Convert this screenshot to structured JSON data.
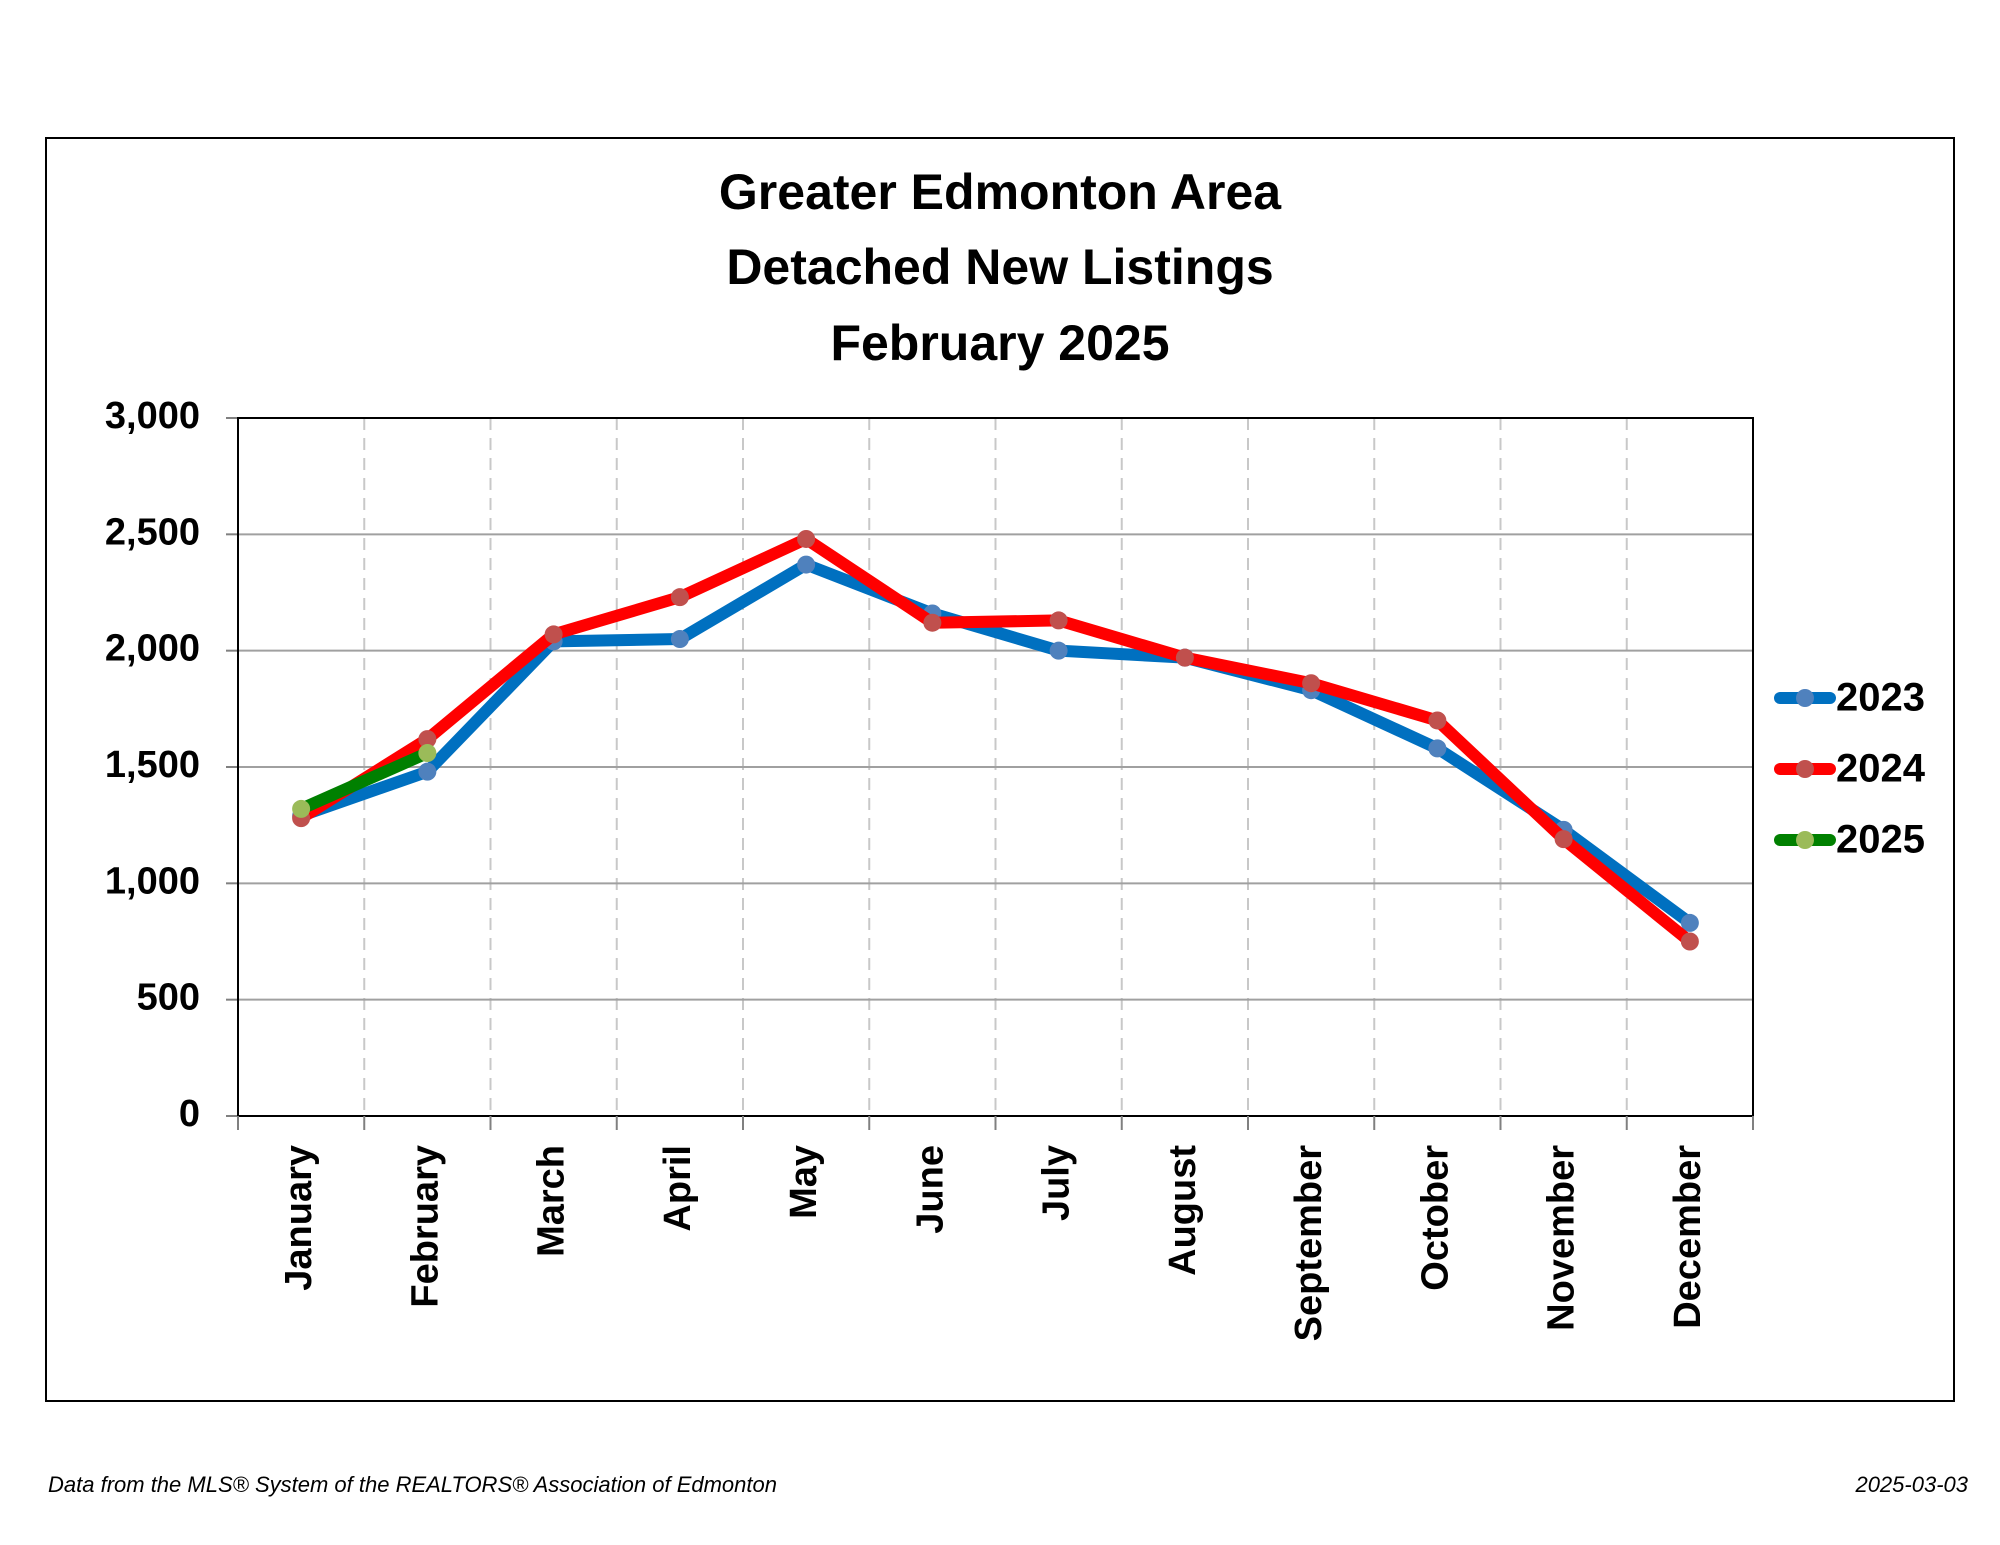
{
  "chart_data": {
    "type": "line",
    "title": [
      "Greater Edmonton Area",
      "Detached New Listings",
      "February 2025"
    ],
    "categories": [
      "January",
      "February",
      "March",
      "April",
      "May",
      "June",
      "July",
      "August",
      "September",
      "October",
      "November",
      "December"
    ],
    "series": [
      {
        "name": "2023",
        "color": "#0070c0",
        "marker_color": "#4f81bd",
        "values": [
          1290,
          1480,
          2040,
          2050,
          2370,
          2160,
          2000,
          1970,
          1830,
          1580,
          1230,
          830
        ]
      },
      {
        "name": "2024",
        "color": "#ff0000",
        "marker_color": "#c0504d",
        "values": [
          1280,
          1620,
          2070,
          2230,
          2480,
          2120,
          2130,
          1970,
          1860,
          1700,
          1190,
          750
        ]
      },
      {
        "name": "2025",
        "color": "#008000",
        "marker_color": "#9bbb59",
        "values": [
          1320,
          1560,
          null,
          null,
          null,
          null,
          null,
          null,
          null,
          null,
          null,
          null
        ]
      }
    ],
    "ylim": [
      0,
      3000
    ],
    "yticks": [
      0,
      500,
      {
        "value": 1000,
        "label": "1,000"
      },
      {
        "value": 1500,
        "label": "1,500"
      },
      {
        "value": 2000,
        "label": "2,000"
      },
      {
        "value": 2500,
        "label": "2,500"
      },
      {
        "value": 3000,
        "label": "3,000"
      }
    ],
    "grid": true,
    "legend": "right",
    "source": "Data from the MLS® System of the REALTORS® Association of Edmonton",
    "date": "2025-03-03"
  }
}
